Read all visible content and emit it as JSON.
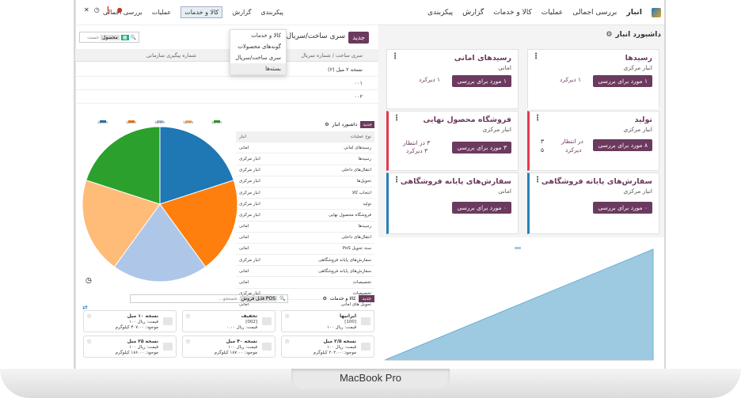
{
  "device": {
    "label": "MacBook Pro"
  },
  "right": {
    "app_name": "انبار",
    "nav": [
      "بررسی اجمالی",
      "عملیات",
      "کالا و خدمات",
      "گزارش",
      "پیکربندی"
    ],
    "breadcrumb": "داشبورد انبار",
    "cards": [
      {
        "title": "رسیدها",
        "sub": "انبار مرکزی",
        "button": "۱ مورد برای بررسی",
        "link": "۱ دیرکرد"
      },
      {
        "title": "رسیدهای امانی",
        "sub": "امانی",
        "button": "۱ مورد برای بررسی",
        "link": "۱ دیرکرد"
      },
      {
        "title": "تولید",
        "sub": "انبار مرکزی",
        "button": "۸ مورد برای بررسی",
        "link1": "در انتظار",
        "link2": "دیرکرد",
        "n1": "۳",
        "n2": "۵"
      },
      {
        "title": "فروشگاه محصول نهایی",
        "sub": "انبار مرکزی",
        "button": "۳ مورد برای بررسی",
        "link1": "۳ در انتظار",
        "link2": "۳ دیرکرد"
      },
      {
        "title": "سفارش‌های پایانه فروشگاهی",
        "sub": "انبار مرکزی",
        "button": "۰ مورد برای بررسی"
      },
      {
        "title": "سفارش‌های پایانه فروشگاهی",
        "sub": "امانی",
        "button": "۰ مورد برای بررسی"
      }
    ]
  },
  "left": {
    "nav": [
      "بررسی اجمالی",
      "عملیات",
      "کالا و خدمات",
      "گزارش",
      "پیکربندی"
    ],
    "new_button": "جدید",
    "title": "سری ساخت/سریال",
    "menu": [
      "کالا و خدمات",
      "گونه‌های محصولات",
      "سری ساخت/سریال",
      "بسته‌ها"
    ],
    "search": {
      "tag": "محصول",
      "placeholder": "جست"
    },
    "table_headers": [
      "سری ساخت / شماره سریال",
      "شماره پیگیری سازمانی"
    ],
    "table_rows": [
      "نسخه ۲ میل (۲)",
      "۰۰۱",
      "۰۰۲"
    ],
    "mini": {
      "new_button": "جدید",
      "title": "داشبورد انبار",
      "list_header": [
        "نوع عملیات",
        "انبار"
      ],
      "list": [
        [
          "رسیدهای امانی",
          "امانی"
        ],
        [
          "رسیدها",
          "انبار مرکزی"
        ],
        [
          "انتقال‌های داخلی",
          "انبار مرکزی"
        ],
        [
          "تحویل‌ها",
          "انبار مرکزی"
        ],
        [
          "انتخاب کالا",
          "انبار مرکزی"
        ],
        [
          "تولید",
          "انبار مرکزی"
        ],
        [
          "فروشگاه محصول نهایی",
          "انبار مرکزی"
        ],
        [
          "رسیدها",
          "امانی"
        ],
        [
          "انتقال‌های داخلی",
          "امانی"
        ],
        [
          "سند تحویل PoS",
          "امانی"
        ],
        [
          "سفارش‌های پایانه فروشگاهی",
          "انبار مرکزی"
        ],
        [
          "سفارش‌های پایانه فروشگاهی",
          "امانی"
        ],
        [
          "تخصیصات",
          "امانی"
        ],
        [
          "تخصیصات",
          "انبار مرکزی"
        ],
        [
          "تحویل های امانی",
          "امانی"
        ]
      ],
      "legend": [
        "Lorem",
        "Lorem",
        "Lorem",
        "Lorem",
        "Lorem"
      ]
    },
    "products_bar": {
      "new_button": "جدید",
      "title": "کالا و خدمات",
      "filter": "POS قابل فروش",
      "placeholder": "جستجو..."
    },
    "products": [
      {
        "name": "ایرانیها",
        "code": "[100]",
        "price": "قیمت: ریال ۱۰۰",
        "stock": ""
      },
      {
        "name": "تخفیف",
        "code": "[002]",
        "price": "قیمت: ریال ۰.۰۰",
        "stock": ""
      },
      {
        "name": "نسخه ۱۰ میل",
        "code": "",
        "price": "قیمت: ریال ۱۰۰",
        "stock": "موجود: ۳۰۷.۰۰ کیلوگرم"
      },
      {
        "name": "نسخه ۲/۵ میل",
        "code": "",
        "price": "قیمت: ریال ۱۰۰",
        "stock": "موجود: ۲۰۲.۰۰ کیلوگرم"
      },
      {
        "name": "نسخه ۴۰ میل",
        "code": "",
        "price": "قیمت: ریال ۱۰۰",
        "stock": "موجود: ۱۸۷.۰۰ کیلوگرم"
      },
      {
        "name": "نسخه ۲۵ میل",
        "code": "",
        "price": "قیمت: ریال ۱۰۰",
        "stock": "موجود: ۱۸۶.۰۰ کیلوگرم"
      }
    ]
  },
  "chart_data": [
    {
      "type": "pie",
      "values": [
        20,
        20,
        20,
        20,
        20
      ],
      "colors": [
        "#1f77b4",
        "#ff7f0e",
        "#aec7e8",
        "#ffbb78",
        "#2ca02c"
      ]
    },
    {
      "type": "area",
      "x": [
        0,
        1
      ],
      "values": [
        0,
        1
      ],
      "color": "#9ecae1"
    }
  ]
}
